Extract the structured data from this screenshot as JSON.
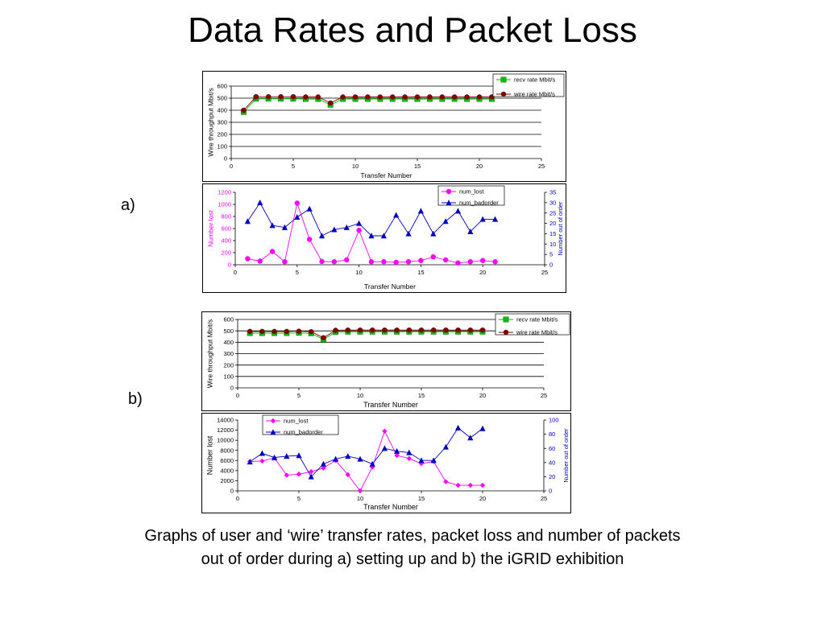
{
  "slide": {
    "title": "Data Rates and Packet Loss",
    "label_a": "a)",
    "label_b": "b)",
    "caption_line1": "Graphs of user and ‘wire’  transfer rates, packet loss and number of packets",
    "caption_line2": "out of order during a) setting up and b) the iGRID exhibition"
  },
  "colors": {
    "recv": "#00c000",
    "wire": "#800000",
    "lost": "#ff00ff",
    "badorder": "#0000c0"
  },
  "chart_data": [
    {
      "id": "a-rates",
      "type": "line",
      "xlabel": "Transfer Number",
      "ylabel": "Wire throughput Mbit/s",
      "xlim": [
        0,
        25
      ],
      "xticks": [
        0,
        5,
        10,
        15,
        20,
        25
      ],
      "ylim": [
        0,
        600
      ],
      "yticks": [
        0,
        100,
        200,
        300,
        400,
        500,
        600
      ],
      "grid": true,
      "legend": "top-right",
      "series": [
        {
          "name": "recv rate Mbit/s",
          "color": "#00c000",
          "marker": "square",
          "axis": "left",
          "x": [
            1,
            2,
            3,
            4,
            5,
            6,
            7,
            8,
            9,
            10,
            11,
            12,
            13,
            14,
            15,
            16,
            17,
            18,
            19,
            20,
            21
          ],
          "y": [
            385,
            495,
            495,
            495,
            495,
            493,
            493,
            445,
            493,
            493,
            493,
            493,
            493,
            493,
            493,
            493,
            493,
            493,
            493,
            493,
            493
          ]
        },
        {
          "name": "wire rate Mbit/s",
          "color": "#800000",
          "marker": "circle",
          "axis": "left",
          "x": [
            1,
            2,
            3,
            4,
            5,
            6,
            7,
            8,
            9,
            10,
            11,
            12,
            13,
            14,
            15,
            16,
            17,
            18,
            19,
            20,
            21
          ],
          "y": [
            400,
            512,
            512,
            512,
            512,
            510,
            510,
            460,
            510,
            510,
            510,
            510,
            510,
            510,
            510,
            510,
            510,
            510,
            510,
            510,
            510
          ]
        }
      ]
    },
    {
      "id": "a-loss",
      "type": "line",
      "xlabel": "Transfer Number",
      "ylabel": "Number lost",
      "y2label": "Number out of order",
      "xlim": [
        0,
        25
      ],
      "xticks": [
        0,
        5,
        10,
        15,
        20,
        25
      ],
      "ylim": [
        0,
        1200
      ],
      "yticks": [
        0,
        200,
        400,
        600,
        800,
        1000,
        1200
      ],
      "y2lim": [
        0,
        35
      ],
      "y2ticks": [
        0,
        5,
        10,
        15,
        20,
        25,
        30,
        35
      ],
      "grid": false,
      "legend": "top-right",
      "series": [
        {
          "name": "num_lost",
          "color": "#ff00ff",
          "marker": "circle",
          "axis": "left",
          "x": [
            1,
            2,
            3,
            4,
            5,
            6,
            7,
            8,
            9,
            10,
            11,
            12,
            13,
            14,
            15,
            16,
            17,
            18,
            19,
            20,
            21
          ],
          "y": [
            100,
            60,
            220,
            50,
            1020,
            420,
            55,
            50,
            80,
            570,
            50,
            50,
            40,
            50,
            70,
            130,
            80,
            30,
            50,
            70,
            50
          ]
        },
        {
          "name": "num_badorder",
          "color": "#0000c0",
          "marker": "triangle",
          "axis": "right",
          "x": [
            1,
            2,
            3,
            4,
            5,
            6,
            7,
            8,
            9,
            10,
            11,
            12,
            13,
            14,
            15,
            16,
            17,
            18,
            19,
            20,
            21
          ],
          "y": [
            21,
            30,
            19,
            18,
            23,
            27,
            14,
            17,
            18,
            20,
            14,
            14,
            24,
            15,
            26,
            15,
            21,
            26,
            16,
            22,
            22
          ]
        }
      ]
    },
    {
      "id": "b-rates",
      "type": "line",
      "xlabel": "Transfer Number",
      "ylabel": "Wire throughput Mbit/s",
      "xlim": [
        0,
        25
      ],
      "xticks": [
        0,
        5,
        10,
        15,
        20,
        25
      ],
      "ylim": [
        0,
        600
      ],
      "yticks": [
        0,
        100,
        200,
        300,
        400,
        500,
        600
      ],
      "grid": true,
      "legend": "top-right",
      "series": [
        {
          "name": "recv rate Mbit/s",
          "color": "#00c000",
          "marker": "square",
          "axis": "left",
          "x": [
            1,
            2,
            3,
            4,
            5,
            6,
            7,
            8,
            9,
            10,
            11,
            12,
            13,
            14,
            15,
            16,
            17,
            18,
            19,
            20
          ],
          "y": [
            480,
            480,
            480,
            480,
            482,
            478,
            425,
            490,
            492,
            492,
            492,
            492,
            492,
            492,
            492,
            492,
            492,
            492,
            492,
            492
          ]
        },
        {
          "name": "wire rate Mbit/s",
          "color": "#800000",
          "marker": "circle",
          "axis": "left",
          "x": [
            1,
            2,
            3,
            4,
            5,
            6,
            7,
            8,
            9,
            10,
            11,
            12,
            13,
            14,
            15,
            16,
            17,
            18,
            19,
            20
          ],
          "y": [
            495,
            495,
            495,
            495,
            497,
            493,
            440,
            505,
            507,
            507,
            507,
            507,
            507,
            507,
            507,
            507,
            507,
            507,
            507,
            507
          ]
        }
      ]
    },
    {
      "id": "b-loss",
      "type": "line",
      "xlabel": "Transfer Number",
      "ylabel": "Number lost",
      "y2label": "Number out of order",
      "xlim": [
        0,
        25
      ],
      "xticks": [
        0,
        5,
        10,
        15,
        20,
        25
      ],
      "ylim": [
        0,
        14000
      ],
      "yticks": [
        0,
        2000,
        4000,
        6000,
        8000,
        10000,
        12000,
        14000
      ],
      "y2lim": [
        0,
        100
      ],
      "y2ticks": [
        0,
        20,
        40,
        60,
        80,
        100
      ],
      "grid": false,
      "legend": "top-left",
      "series": [
        {
          "name": "num_lost",
          "color": "#ff00ff",
          "marker": "diamond",
          "axis": "left",
          "x": [
            1,
            2,
            3,
            4,
            5,
            6,
            7,
            8,
            9,
            10,
            11,
            12,
            13,
            14,
            15,
            16,
            17,
            18,
            19,
            20
          ],
          "y": [
            5800,
            5900,
            6500,
            3100,
            3300,
            3800,
            4500,
            6000,
            3200,
            0,
            4700,
            11800,
            7000,
            6400,
            5400,
            5800,
            1800,
            1100,
            1100,
            1100
          ]
        },
        {
          "name": "num_badorder",
          "color": "#0000c0",
          "marker": "triangle",
          "axis": "right",
          "x": [
            1,
            2,
            3,
            4,
            5,
            6,
            7,
            8,
            9,
            10,
            11,
            12,
            13,
            14,
            15,
            16,
            17,
            18,
            19,
            20
          ],
          "y": [
            41,
            53,
            47,
            49,
            50,
            20,
            38,
            45,
            49,
            45,
            38,
            60,
            56,
            54,
            43,
            43,
            62,
            89,
            75,
            88
          ]
        }
      ]
    }
  ]
}
